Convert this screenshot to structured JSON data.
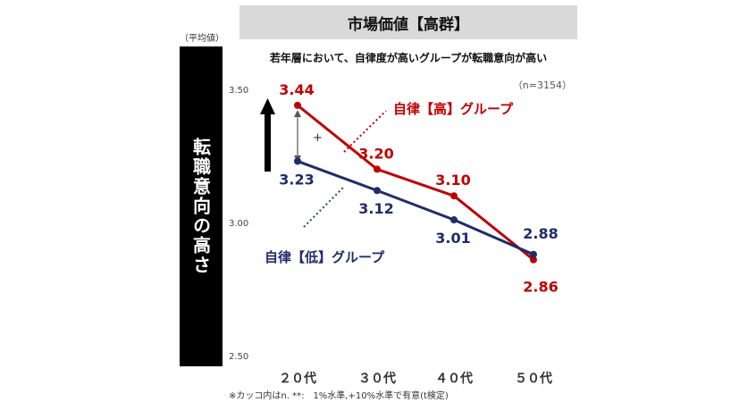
{
  "header": {
    "title": "市場価値【高群】",
    "unit": "（平均値）",
    "subtitle": "若年層において、自律度が高いグループが転職意向が高い",
    "sample": "（n=3154）",
    "note": "※カッコ内はn. **:　1%水準,+10%水準で有意(t検定)"
  },
  "chart_data": {
    "type": "line",
    "title": "市場価値【高群】",
    "ylabel": "転職意向の高さ",
    "categories": [
      "２０代",
      "３０代",
      "４０代",
      "５０代"
    ],
    "yticks": [
      "3.50",
      "3.00",
      "2.50"
    ],
    "ylim": [
      2.5,
      3.5
    ],
    "series": [
      {
        "name": "自律【高】グループ",
        "color": "#c00000",
        "values": [
          3.44,
          3.2,
          3.1,
          2.86
        ],
        "labels": [
          "3.44",
          "3.20",
          "3.10",
          "2.86"
        ]
      },
      {
        "name": "自律【低】グループ",
        "color": "#1f2d6b",
        "values": [
          3.23,
          3.12,
          3.01,
          2.88
        ],
        "labels": [
          "3.23",
          "3.12",
          "3.01",
          "2.88"
        ]
      }
    ],
    "significance_mark": "+"
  }
}
